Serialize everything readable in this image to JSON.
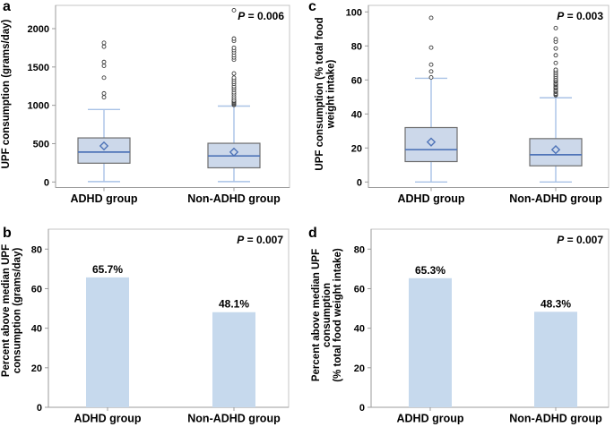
{
  "colors": {
    "background": "#ffffff",
    "box_fill": "#ccd8ea",
    "box_border": "#6e6e6e",
    "median": "#4f74b8",
    "whisker": "#a9c2e6",
    "mean_marker": "#4f74b8",
    "outlier": "#3c3c3c",
    "bar_fill": "#c6d9ed",
    "frame": "#c4c4c4",
    "axis": "#9b9b9b",
    "text": "#000000"
  },
  "chart_data": [
    {
      "panel": "a",
      "type": "box",
      "ylabel_lines": [
        "UPF consumption (grams/day)"
      ],
      "p_label": "P = 0.006",
      "yticks": [
        0,
        500,
        1000,
        1500,
        2000
      ],
      "ylim": [
        0,
        2300
      ],
      "categories": [
        "ADHD group",
        "Non-ADHD group"
      ],
      "series": [
        {
          "name": "ADHD group",
          "whisker_low": 5,
          "q1": 245,
          "median": 390,
          "q3": 575,
          "whisker_high": 945,
          "mean": 470,
          "outliers": [
            1105,
            1155,
            1360,
            1515,
            1565,
            1765,
            1815
          ]
        },
        {
          "name": "Non-ADHD group",
          "whisker_low": 5,
          "q1": 185,
          "median": 340,
          "q3": 505,
          "whisker_high": 990,
          "mean": 390,
          "outliers": [
            1005,
            1010,
            1025,
            1035,
            1050,
            1060,
            1065,
            1090,
            1115,
            1145,
            1170,
            1200,
            1225,
            1250,
            1280,
            1305,
            1335,
            1360,
            1415,
            1595,
            1625,
            1655,
            1690,
            1720,
            1750,
            1840,
            1870,
            2240
          ]
        }
      ]
    },
    {
      "panel": "b",
      "type": "bar",
      "ylabel_lines": [
        "Percent above median UPF",
        "consumption (grams/day)"
      ],
      "p_label": "P = 0.007",
      "yticks": [
        0,
        20,
        40,
        60,
        80
      ],
      "ylim": [
        0,
        90
      ],
      "categories": [
        "ADHD group",
        "Non-ADHD group"
      ],
      "values": [
        65.7,
        48.1
      ],
      "value_labels": [
        "65.7%",
        "48.1%"
      ]
    },
    {
      "panel": "c",
      "type": "box",
      "ylabel_lines": [
        "UPF consumption (% total food",
        "weight intake)"
      ],
      "p_label": "P = 0.003",
      "yticks": [
        0,
        20,
        40,
        60,
        80,
        100
      ],
      "ylim": [
        0,
        104
      ],
      "categories": [
        "ADHD group",
        "Non-ADHD group"
      ],
      "series": [
        {
          "name": "ADHD group",
          "whisker_low": 0,
          "q1": 12,
          "median": 19,
          "q3": 32,
          "whisker_high": 61,
          "mean": 23.5,
          "outliers": [
            61.5,
            65,
            69,
            79,
            96.5
          ]
        },
        {
          "name": "Non-ADHD group",
          "whisker_low": 0,
          "q1": 9.5,
          "median": 16,
          "q3": 25.5,
          "whisker_high": 49.5,
          "mean": 19,
          "outliers": [
            51,
            51.5,
            52,
            53,
            53.5,
            54,
            55,
            55.5,
            56,
            57,
            57.5,
            58,
            59,
            59.5,
            60,
            61,
            62,
            63,
            64,
            65,
            66,
            70,
            74.5,
            78.5,
            82.5,
            84,
            90.5
          ]
        }
      ]
    },
    {
      "panel": "d",
      "type": "bar",
      "ylabel_lines": [
        "Percent above median UPF",
        "consumption",
        "(% total food weight intake)"
      ],
      "p_label": "P = 0.007",
      "yticks": [
        0,
        20,
        40,
        60,
        80
      ],
      "ylim": [
        0,
        90
      ],
      "categories": [
        "ADHD group",
        "Non-ADHD group"
      ],
      "values": [
        65.3,
        48.3
      ],
      "value_labels": [
        "65.3%",
        "48.3%"
      ]
    }
  ]
}
